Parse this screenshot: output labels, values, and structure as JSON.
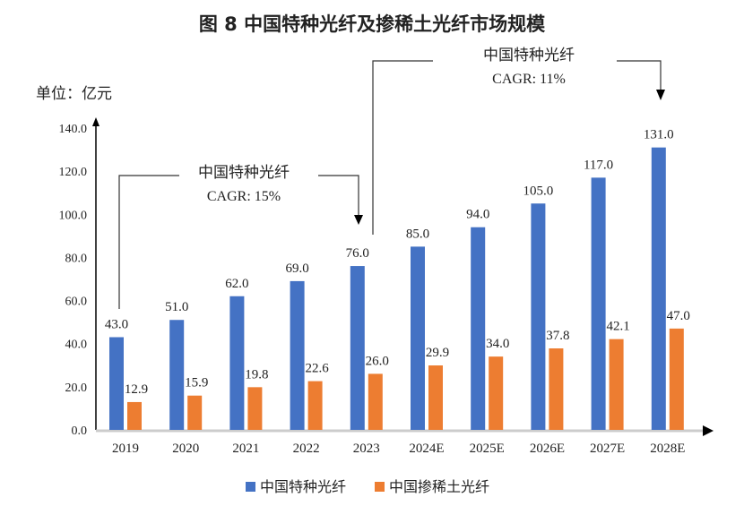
{
  "chart_data": {
    "type": "bar",
    "title": "图 8 中国特种光纤及掺稀土光纤市场规模",
    "unit_label": "单位：亿元",
    "categories": [
      "2019",
      "2020",
      "2021",
      "2022",
      "2023",
      "2024E",
      "2025E",
      "2026E",
      "2027E",
      "2028E"
    ],
    "series": [
      {
        "name": "中国特种光纤",
        "color": "#4472C4",
        "values": [
          43.0,
          51.0,
          62.0,
          69.0,
          76.0,
          85.0,
          94.0,
          105.0,
          117.0,
          131.0
        ]
      },
      {
        "name": "中国掺稀土光纤",
        "color": "#ED7D31",
        "values": [
          12.9,
          15.9,
          19.8,
          22.6,
          26.0,
          29.9,
          34.0,
          37.8,
          42.1,
          47.0
        ]
      }
    ],
    "ylim": [
      0,
      140
    ],
    "yticks": [
      "0.0",
      "20.0",
      "40.0",
      "60.0",
      "80.0",
      "100.0",
      "120.0",
      "140.0"
    ],
    "grid": false,
    "legend": "bottom",
    "annotations": [
      {
        "line1": "中国特种光纤",
        "line2": "CAGR: 15%",
        "from": "2019",
        "to": "2023"
      },
      {
        "line1": "中国特种光纤",
        "line2": "CAGR: 11%",
        "from": "2023",
        "to": "2028E"
      }
    ]
  }
}
